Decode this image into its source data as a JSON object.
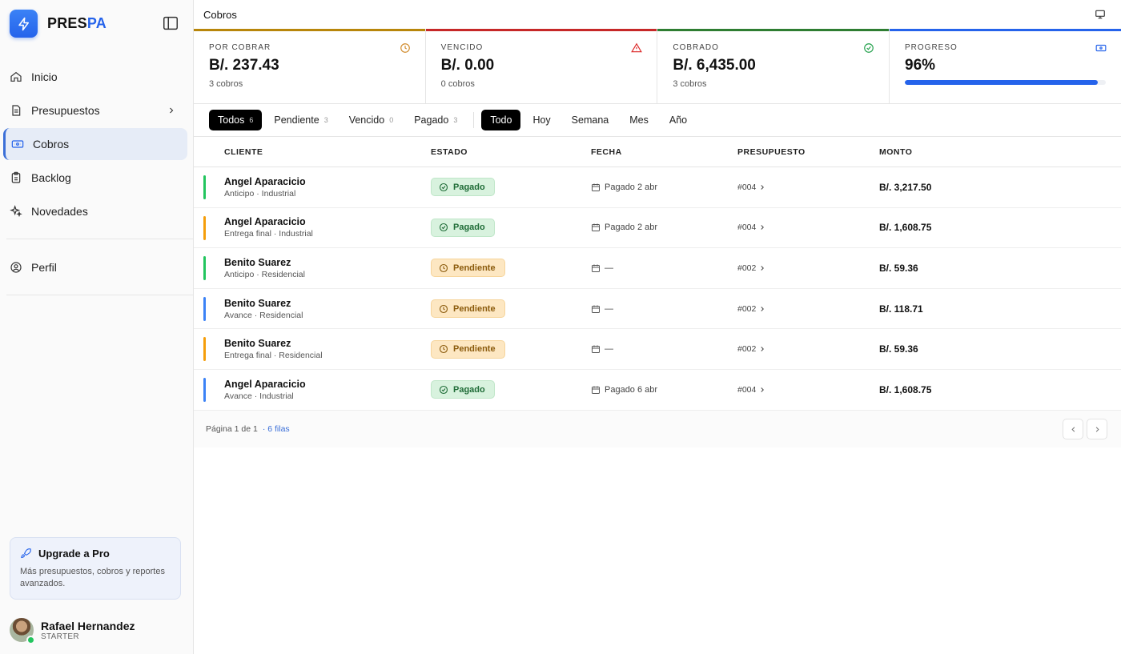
{
  "brand": {
    "name_part1": "PRES",
    "name_part2": "PA"
  },
  "colors": {
    "accent": "#2563eb",
    "paid": "#22c55e",
    "pending": "#f59e0b",
    "overdue": "#dc2626"
  },
  "sidebar": {
    "items": [
      {
        "label": "Inicio",
        "icon": "home-icon"
      },
      {
        "label": "Presupuestos",
        "icon": "document-icon"
      },
      {
        "label": "Cobros",
        "icon": "banknote-icon",
        "active": true
      },
      {
        "label": "Backlog",
        "icon": "clipboard-icon"
      },
      {
        "label": "Novedades",
        "icon": "sparkles-icon"
      }
    ],
    "profile": {
      "label": "Perfil",
      "icon": "user-circle-icon"
    },
    "upgrade": {
      "title": "Upgrade a Pro",
      "description": "Más presupuestos, cobros y reportes avanzados."
    },
    "user": {
      "name": "Rafael Hernandez",
      "plan": "STARTER"
    }
  },
  "header": {
    "title": "Cobros"
  },
  "stats": [
    {
      "label": "POR COBRAR",
      "value": "B/. 237.43",
      "sub": "3 cobros",
      "color": "#b8860b",
      "icon": "clock-icon"
    },
    {
      "label": "VENCIDO",
      "value": "B/. 0.00",
      "sub": "0 cobros",
      "color": "#c62828",
      "icon": "alert-triangle-icon"
    },
    {
      "label": "COBRADO",
      "value": "B/. 6,435.00",
      "sub": "3 cobros",
      "color": "#2e7d32",
      "icon": "check-circle-icon"
    },
    {
      "label": "PROGRESO",
      "value": "96%",
      "progress": 0.96,
      "color": "#2563eb",
      "icon": "banknote-icon"
    }
  ],
  "filters": {
    "status": [
      {
        "label": "Todos",
        "count": "6",
        "active": true
      },
      {
        "label": "Pendiente",
        "count": "3"
      },
      {
        "label": "Vencido",
        "count": "0"
      },
      {
        "label": "Pagado",
        "count": "3"
      }
    ],
    "period": [
      {
        "label": "Todo",
        "active": true
      },
      {
        "label": "Hoy"
      },
      {
        "label": "Semana"
      },
      {
        "label": "Mes"
      },
      {
        "label": "Año"
      }
    ]
  },
  "table": {
    "columns": [
      "CLIENTE",
      "ESTADO",
      "FECHA",
      "PRESUPUESTO",
      "MONTO"
    ],
    "rows": [
      {
        "client": "Angel Aparacicio",
        "sub": "Anticipo · Industrial",
        "status": "Pagado",
        "date": "Pagado 2 abr",
        "budget": "#004",
        "amount": "B/. 3,217.50",
        "stripe": "#22c55e"
      },
      {
        "client": "Angel Aparacicio",
        "sub": "Entrega final · Industrial",
        "status": "Pagado",
        "date": "Pagado 2 abr",
        "budget": "#004",
        "amount": "B/. 1,608.75",
        "stripe": "#f59e0b"
      },
      {
        "client": "Benito Suarez",
        "sub": "Anticipo · Residencial",
        "status": "Pendiente",
        "date": "—",
        "budget": "#002",
        "amount": "B/. 59.36",
        "stripe": "#22c55e"
      },
      {
        "client": "Benito Suarez",
        "sub": "Avance · Residencial",
        "status": "Pendiente",
        "date": "—",
        "budget": "#002",
        "amount": "B/. 118.71",
        "stripe": "#3b82f6"
      },
      {
        "client": "Benito Suarez",
        "sub": "Entrega final · Residencial",
        "status": "Pendiente",
        "date": "—",
        "budget": "#002",
        "amount": "B/. 59.36",
        "stripe": "#f59e0b"
      },
      {
        "client": "Angel Aparacicio",
        "sub": "Avance · Industrial",
        "status": "Pagado",
        "date": "Pagado 6 abr",
        "budget": "#004",
        "amount": "B/. 1,608.75",
        "stripe": "#3b82f6"
      }
    ]
  },
  "pagination": {
    "page_text": "Página 1 de 1",
    "rows_text": "· 6 filas"
  }
}
